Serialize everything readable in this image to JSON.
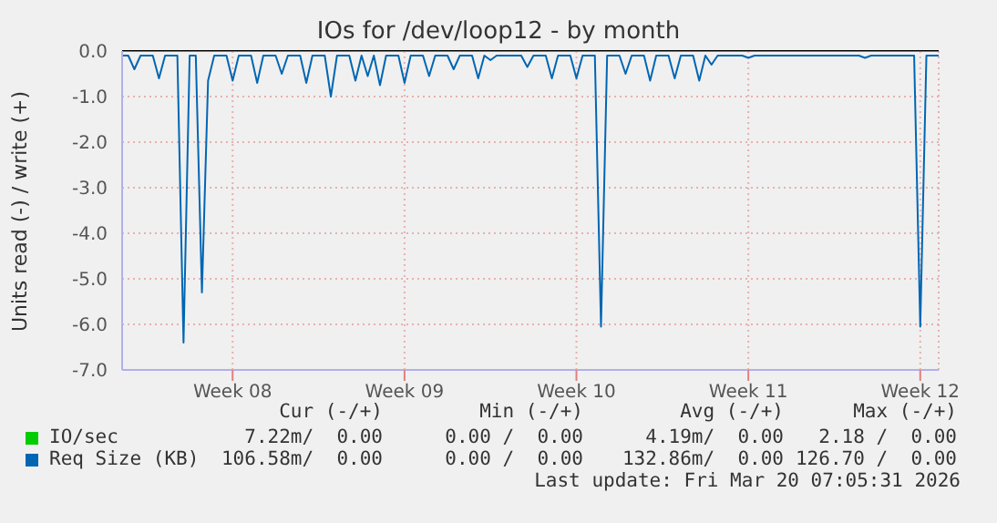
{
  "chart_data": {
    "type": "line",
    "title": "IOs for /dev/loop12 - by month",
    "ylabel": "Units read (-) / write (+)",
    "categories": [
      null,
      null,
      null,
      null,
      null,
      null,
      null,
      null,
      null,
      null,
      null,
      null,
      null,
      null,
      null,
      null,
      null,
      null,
      "Week 08",
      null,
      null,
      null,
      null,
      null,
      null,
      null,
      null,
      null,
      null,
      null,
      null,
      null,
      null,
      null,
      null,
      null,
      null,
      null,
      null,
      null,
      null,
      null,
      null,
      null,
      null,
      null,
      "Week 09",
      null,
      null,
      null,
      null,
      null,
      null,
      null,
      null,
      null,
      null,
      null,
      null,
      null,
      null,
      null,
      null,
      null,
      null,
      null,
      null,
      null,
      null,
      null,
      null,
      null,
      null,
      null,
      "Week 10",
      null,
      null,
      null,
      null,
      null,
      null,
      null,
      null,
      null,
      null,
      null,
      null,
      null,
      null,
      null,
      null,
      null,
      null,
      null,
      null,
      null,
      null,
      null,
      null,
      null,
      null,
      null,
      "Week 11",
      null,
      null,
      null,
      null,
      null,
      null,
      null,
      null,
      null,
      null,
      null,
      null,
      null,
      null,
      null,
      null,
      null,
      null,
      null,
      null,
      null,
      null,
      null,
      null,
      null,
      null,
      null,
      "Week 12",
      null,
      null,
      null
    ],
    "ylim": [
      -7,
      0
    ],
    "yticks": [
      {
        "value": -7,
        "label": "-7.0"
      },
      {
        "value": -6,
        "label": "-6.0"
      },
      {
        "value": -5,
        "label": "-5.0"
      },
      {
        "value": -4,
        "label": "-4.0"
      },
      {
        "value": -3,
        "label": "-3.0"
      },
      {
        "value": -2,
        "label": "-2.0"
      },
      {
        "value": -1,
        "label": "-1.0"
      },
      {
        "value": 0,
        "label": "0.0"
      }
    ],
    "grid": true,
    "legend": "bottom",
    "marker": "none",
    "line_style": "solid",
    "ref_lines": [
      {
        "axis": "y",
        "value": 0,
        "label": null,
        "color": "#000000"
      }
    ],
    "series": [
      {
        "name": "Req Size (KB)",
        "color": "#0066b3",
        "values": [
          -0.1,
          -0.1,
          -0.4,
          -0.1,
          -0.1,
          -0.1,
          -0.6,
          -0.1,
          -0.1,
          -0.1,
          -6.4,
          -0.1,
          -0.1,
          -5.3,
          -0.65,
          -0.1,
          -0.1,
          -0.1,
          -0.65,
          -0.1,
          -0.1,
          -0.1,
          -0.7,
          -0.1,
          -0.1,
          -0.1,
          -0.5,
          -0.1,
          -0.1,
          -0.1,
          -0.7,
          -0.1,
          -0.1,
          -0.1,
          -1.0,
          -0.1,
          -0.1,
          -0.1,
          -0.65,
          -0.1,
          -0.55,
          -0.1,
          -0.75,
          -0.1,
          -0.1,
          -0.1,
          -0.7,
          -0.1,
          -0.1,
          -0.1,
          -0.55,
          -0.1,
          -0.1,
          -0.1,
          -0.4,
          -0.1,
          -0.1,
          -0.1,
          -0.6,
          -0.1,
          -0.2,
          -0.1,
          -0.1,
          -0.1,
          -0.1,
          -0.1,
          -0.35,
          -0.1,
          -0.1,
          -0.1,
          -0.6,
          -0.1,
          -0.1,
          -0.1,
          -0.6,
          -0.1,
          -0.1,
          -0.1,
          -6.05,
          -0.1,
          -0.1,
          -0.1,
          -0.5,
          -0.1,
          -0.1,
          -0.1,
          -0.65,
          -0.1,
          -0.1,
          -0.1,
          -0.6,
          -0.1,
          -0.1,
          -0.1,
          -0.65,
          -0.1,
          -0.3,
          -0.1,
          -0.1,
          -0.1,
          -0.1,
          -0.1,
          -0.15,
          -0.1,
          -0.1,
          -0.1,
          -0.1,
          -0.1,
          -0.1,
          -0.1,
          -0.1,
          -0.1,
          -0.1,
          -0.1,
          -0.1,
          -0.1,
          -0.1,
          -0.1,
          -0.1,
          -0.1,
          -0.1,
          -0.15,
          -0.1,
          -0.1,
          -0.1,
          -0.1,
          -0.1,
          -0.1,
          -0.1,
          -0.1,
          -6.05,
          -0.1,
          -0.1,
          -0.1
        ]
      },
      {
        "name": "IO/sec",
        "color": "#00cc00",
        "values": [
          0,
          0,
          0,
          0,
          0,
          0,
          0,
          0,
          0,
          0,
          0,
          0,
          0,
          0,
          0,
          0,
          0,
          0,
          0,
          0,
          0,
          0,
          0,
          0,
          0,
          0,
          0,
          0,
          0,
          0,
          0,
          0,
          0,
          0,
          0,
          0,
          0,
          0,
          0,
          0,
          0,
          0,
          0,
          0,
          0,
          0,
          0,
          0,
          0,
          0,
          0,
          0,
          0,
          0,
          0,
          0,
          0,
          0,
          0,
          0,
          0,
          0,
          0,
          0,
          0,
          0,
          0,
          0,
          0,
          0,
          0,
          0,
          0,
          0,
          0,
          0,
          0,
          0,
          0,
          0,
          0,
          0,
          0,
          0,
          0,
          0,
          0,
          0,
          0,
          0,
          0,
          0,
          0,
          0,
          0,
          0,
          0,
          0,
          0,
          0,
          0,
          0,
          0,
          0,
          0,
          0,
          0,
          0,
          0,
          0,
          0,
          0,
          0,
          0,
          0,
          0,
          0,
          0,
          0,
          0,
          0,
          0,
          0,
          0,
          0,
          0,
          0,
          0,
          0,
          0,
          0,
          0,
          0,
          0
        ]
      }
    ],
    "annotations": [
      "Cur (-/+)",
      "Min (-/+)",
      "Avg (-/+)",
      "Max (-/+)",
      "7.22m/  0.00",
      "0.00 /  0.00",
      "4.19m/  0.00",
      "2.18 /  0.00",
      "106.58m/  0.00",
      "0.00 /  0.00",
      "132.86m/  0.00",
      "126.70 /  0.00",
      "Last update: Fri Mar 20 07:05:31 2026"
    ]
  }
}
